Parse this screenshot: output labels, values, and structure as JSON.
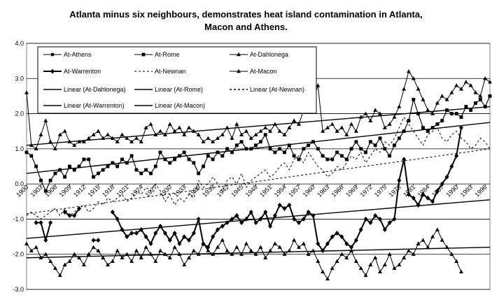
{
  "chart_data": {
    "type": "line",
    "title_lines": [
      "Atlanta minus six neighbours, demonstrates  heat island contamination in Atlanta,",
      "Macon and Athens."
    ],
    "x": [
      1900,
      1901,
      1902,
      1903,
      1904,
      1905,
      1906,
      1907,
      1908,
      1909,
      1910,
      1911,
      1912,
      1913,
      1914,
      1915,
      1916,
      1917,
      1918,
      1919,
      1920,
      1921,
      1922,
      1923,
      1924,
      1925,
      1926,
      1927,
      1928,
      1929,
      1930,
      1931,
      1932,
      1933,
      1934,
      1935,
      1936,
      1937,
      1938,
      1939,
      1940,
      1941,
      1942,
      1943,
      1944,
      1945,
      1946,
      1947,
      1948,
      1949,
      1950,
      1951,
      1952,
      1953,
      1954,
      1955,
      1956,
      1957,
      1958,
      1959,
      1960,
      1961,
      1962,
      1963,
      1964,
      1965,
      1966,
      1967,
      1968,
      1969,
      1970,
      1971,
      1972,
      1973,
      1974,
      1975,
      1976,
      1977,
      1978,
      1979,
      1980,
      1981,
      1982,
      1983,
      1984,
      1985,
      1986,
      1987,
      1988,
      1989,
      1990,
      1991,
      1992,
      1993,
      1994,
      1995,
      1996,
      1997
    ],
    "x_tick_labels": [
      "1900",
      "1903",
      "1906",
      "1909",
      "1912",
      "1915",
      "1918",
      "1921",
      "1924",
      "1927",
      "1930",
      "1933",
      "1936",
      "1939",
      "1942",
      "1945",
      "1948",
      "1951",
      "1954",
      "1957",
      "1960",
      "1963",
      "1966",
      "1969",
      "1972",
      "1975",
      "1978",
      "1981",
      "1984",
      "1987",
      "1990",
      "1993",
      "1996"
    ],
    "y_tick_labels": [
      "4.0",
      "3.0",
      "2.0",
      "1.0",
      "0.0",
      "-1.0",
      "-2.0",
      "-3.0"
    ],
    "y_ticks": [
      4,
      3,
      2,
      1,
      0,
      -1,
      -2,
      -3
    ],
    "ylim": [
      -3,
      4
    ],
    "xlim": [
      1900,
      1997
    ],
    "grid": "horizontal",
    "legend_position": "top",
    "series": [
      {
        "name": "At-Athens",
        "marker": "circle",
        "style": "solid",
        "width": 1,
        "values": [
          0.9,
          0.8,
          0.5,
          0.1,
          -0.2,
          0.1,
          0.3,
          0.4,
          0.2,
          0.5,
          0.4,
          0.5,
          0.7,
          0.7,
          0.2,
          0.3,
          0.4,
          0.5,
          0.6,
          0.5,
          0.7,
          0.6,
          0.8,
          0.4,
          0.3,
          0.4,
          0.3,
          0.5,
          0.9,
          0.7,
          0.6,
          0.7,
          0.8,
          0.9,
          0.7,
          0.6,
          0.3,
          0.5,
          0.8,
          0.7,
          0.9,
          0.8,
          1.0,
          0.9,
          1.1,
          1.2,
          1.0,
          1.0,
          1.1,
          1.2,
          1.4,
          1.0,
          0.9,
          1.0,
          0.9,
          1.1,
          0.8,
          0.7,
          1.0,
          1.1,
          1.2,
          1.0,
          0.8,
          0.7,
          0.7,
          0.9,
          0.8,
          0.7,
          1.0,
          1.2,
          1.0,
          0.9,
          1.2,
          1.1,
          1.3,
          1.0,
          0.8,
          1.1,
          1.3,
          1.5,
          1.8,
          2.4,
          2.0,
          1.6,
          1.5,
          1.6,
          1.7,
          1.8,
          2.1,
          2.0,
          2.0,
          1.9,
          2.2,
          2.1,
          2.3,
          2.4,
          2.2,
          2.5
        ]
      },
      {
        "name": "At-Rome",
        "marker": "square",
        "style": "solid",
        "width": 1,
        "values": [
          0.9,
          0.8,
          0.5,
          0.1,
          -0.2,
          0.1,
          0.3,
          0.4,
          0.2,
          0.5,
          0.4,
          0.5,
          0.7,
          0.7,
          0.2,
          0.3,
          0.4,
          0.5,
          0.6,
          0.5,
          0.7,
          0.6,
          0.8,
          0.4,
          0.3,
          0.4,
          0.3,
          0.5,
          0.9,
          0.7,
          0.6,
          0.7,
          0.8,
          0.9,
          0.7,
          0.6,
          0.3,
          0.5,
          0.8,
          0.7,
          0.9,
          0.8,
          1.0,
          0.9,
          1.1,
          1.2,
          1.0,
          1.0,
          1.1,
          1.2,
          1.4,
          1.0,
          0.9,
          1.0,
          0.9,
          1.1,
          0.8,
          0.7,
          1.0,
          1.1,
          1.2,
          1.0,
          0.8,
          0.7,
          0.7,
          0.9,
          0.8,
          0.7,
          1.0,
          1.2,
          1.0,
          0.9,
          1.2,
          1.1,
          1.3,
          1.0,
          0.8,
          1.1,
          1.3,
          1.5,
          1.8,
          2.4,
          2.0,
          1.6,
          1.5,
          1.6,
          1.7,
          1.8,
          2.1,
          2.0,
          2.0,
          1.9,
          2.2,
          2.1,
          2.3,
          2.4,
          2.2,
          2.5
        ]
      },
      {
        "name": "At-Dahlonega",
        "marker": "triangle",
        "style": "solid",
        "width": 1,
        "values": [
          2.6,
          1.1,
          1.0,
          1.4,
          1.8,
          1.2,
          1.0,
          1.4,
          1.5,
          1.2,
          1.1,
          1.2,
          1.2,
          1.3,
          1.4,
          1.5,
          1.3,
          1.4,
          1.3,
          1.2,
          1.4,
          1.3,
          1.2,
          1.3,
          1.2,
          1.6,
          1.7,
          1.4,
          1.5,
          1.4,
          1.7,
          1.5,
          1.6,
          1.4,
          1.6,
          1.5,
          1.4,
          1.2,
          1.3,
          1.2,
          1.3,
          1.4,
          1.6,
          1.3,
          1.7,
          1.4,
          1.5,
          1.3,
          1.4,
          1.5,
          1.6,
          1.5,
          1.7,
          1.5,
          1.4,
          1.6,
          1.8,
          1.7,
          2.1,
          2.3,
          2.4,
          2.8,
          1.5,
          1.6,
          1.7,
          1.5,
          1.6,
          1.4,
          1.7,
          1.5,
          1.9,
          2.0,
          1.8,
          2.1,
          2.0,
          1.6,
          1.7,
          1.9,
          2.2,
          2.7,
          3.2,
          3.0,
          2.7,
          2.4,
          2.1,
          2.0,
          2.3,
          2.5,
          2.4,
          2.6,
          2.8,
          2.7,
          2.9,
          2.8,
          2.6,
          2.5,
          3.0,
          2.9
        ]
      },
      {
        "name": "At-Warrenton",
        "marker": "diamond",
        "style": "solid",
        "width": 2,
        "values": [
          null,
          null,
          -1.1,
          -1.1,
          -1.6,
          -1.1,
          null,
          null,
          -0.8,
          -0.9,
          -0.9,
          -0.7,
          null,
          null,
          -1.6,
          -1.6,
          null,
          null,
          -0.8,
          -1.0,
          -1.3,
          -1.5,
          -1.4,
          -1.4,
          -1.3,
          -1.5,
          -1.7,
          -1.4,
          -1.2,
          -1.4,
          -1.6,
          -1.4,
          -1.7,
          -1.5,
          -1.6,
          -1.4,
          -1.0,
          -1.7,
          -1.8,
          -1.5,
          -1.3,
          -1.2,
          -1.1,
          -1.0,
          -0.9,
          -1.1,
          -1.0,
          -0.8,
          -1.1,
          -1.0,
          -0.8,
          -1.2,
          -0.9,
          -0.6,
          -0.7,
          -0.6,
          -1.0,
          -1.1,
          -1.0,
          -0.8,
          -0.9,
          -1.7,
          -1.9,
          -1.7,
          -1.5,
          -1.4,
          -1.5,
          -1.7,
          -1.8,
          -1.6,
          -1.3,
          -1.0,
          -1.1,
          -0.9,
          -1.0,
          -1.3,
          -1.1,
          -1.0,
          0.1,
          0.7,
          -0.3,
          -0.4,
          -0.6,
          -0.3,
          -0.4,
          -0.5,
          -0.2,
          0.0,
          0.2,
          0.5,
          0.8,
          1.6,
          null,
          null,
          null,
          null,
          null,
          null
        ]
      },
      {
        "name": "At-Newnan",
        "marker": "none",
        "style": "dashed",
        "width": 1,
        "values": [
          -0.9,
          -0.8,
          -0.9,
          -1.0,
          -0.9,
          -0.8,
          -0.7,
          -0.9,
          -0.7,
          -0.9,
          -0.8,
          -0.7,
          -0.6,
          -0.8,
          -0.7,
          -0.5,
          -0.6,
          -0.4,
          -0.5,
          -0.4,
          -0.3,
          -0.5,
          -0.4,
          -0.2,
          -0.3,
          -0.1,
          -0.2,
          0.0,
          -0.2,
          -0.5,
          -0.3,
          -0.6,
          -0.4,
          -0.5,
          -0.3,
          -0.4,
          0.1,
          -0.1,
          0.0,
          0.2,
          0.0,
          -0.2,
          0.1,
          0.2,
          0.0,
          0.3,
          -0.1,
          0.1,
          0.2,
          0.3,
          0.4,
          0.2,
          0.3,
          0.5,
          0.6,
          0.4,
          0.7,
          0.8,
          0.6,
          0.9,
          0.7,
          0.5,
          0.4,
          0.2,
          0.3,
          0.5,
          0.4,
          0.6,
          0.8,
          0.7,
          0.9,
          0.6,
          0.8,
          1.0,
          0.9,
          1.2,
          1.1,
          1.3,
          1.6,
          1.9,
          1.7,
          1.5,
          1.3,
          1.1,
          1.4,
          1.5,
          1.6,
          1.3,
          1.2,
          1.4,
          1.5,
          1.3,
          1.2,
          1.0,
          1.1,
          1.3,
          1.2,
          1.0
        ]
      },
      {
        "name": "At-Macon",
        "marker": "triangle",
        "style": "solid",
        "width": 1,
        "values": [
          -1.7,
          -1.9,
          -1.8,
          -2.1,
          -2.0,
          -2.2,
          -2.4,
          -2.6,
          -2.3,
          -2.2,
          -2.0,
          -2.1,
          -2.3,
          -2.0,
          -1.8,
          -1.9,
          -2.1,
          -2.3,
          -2.2,
          -1.9,
          -2.1,
          -2.0,
          -2.2,
          -1.9,
          -2.1,
          -1.8,
          -2.0,
          -2.2,
          -1.9,
          -2.0,
          -2.1,
          -1.8,
          -2.0,
          -2.3,
          -2.1,
          -1.9,
          -2.0,
          -1.7,
          -1.9,
          -2.0,
          -1.8,
          -1.6,
          -1.9,
          -2.0,
          -1.8,
          -2.0,
          -1.7,
          -1.9,
          -2.0,
          -1.8,
          -2.1,
          -1.9,
          -1.7,
          -1.8,
          -2.0,
          -1.9,
          -1.6,
          -1.8,
          -1.7,
          -2.0,
          -1.9,
          -2.2,
          -2.5,
          -2.7,
          -2.4,
          -2.2,
          -2.0,
          -2.1,
          -1.9,
          -2.2,
          -2.4,
          -2.6,
          -2.3,
          -2.1,
          -2.5,
          -2.3,
          -2.0,
          -2.4,
          -2.3,
          -2.1,
          -1.9,
          -2.0,
          -1.7,
          -1.6,
          -1.8,
          -1.5,
          -1.3,
          -1.6,
          -1.8,
          -2.0,
          -2.2,
          -2.5,
          null,
          null,
          null,
          null,
          null,
          null
        ]
      },
      {
        "name": "Linear (At-Dahlonega)",
        "style": "solid",
        "width": 1.4,
        "trend": [
          1.1,
          2.2
        ]
      },
      {
        "name": "Linear (At-Rome)",
        "style": "solid",
        "width": 1.4,
        "trend": [
          0.3,
          1.75
        ]
      },
      {
        "name": "Linear (At-Newnan)",
        "style": "dashed",
        "width": 1,
        "trend": [
          -0.85,
          1.0
        ]
      },
      {
        "name": "Linear (At-Warrenton)",
        "style": "solid",
        "width": 1.4,
        "trend": [
          -1.55,
          -0.45
        ]
      },
      {
        "name": "Linear (At-Macon)",
        "style": "solid",
        "width": 1.4,
        "trend": [
          -2.1,
          -1.8
        ]
      }
    ]
  }
}
